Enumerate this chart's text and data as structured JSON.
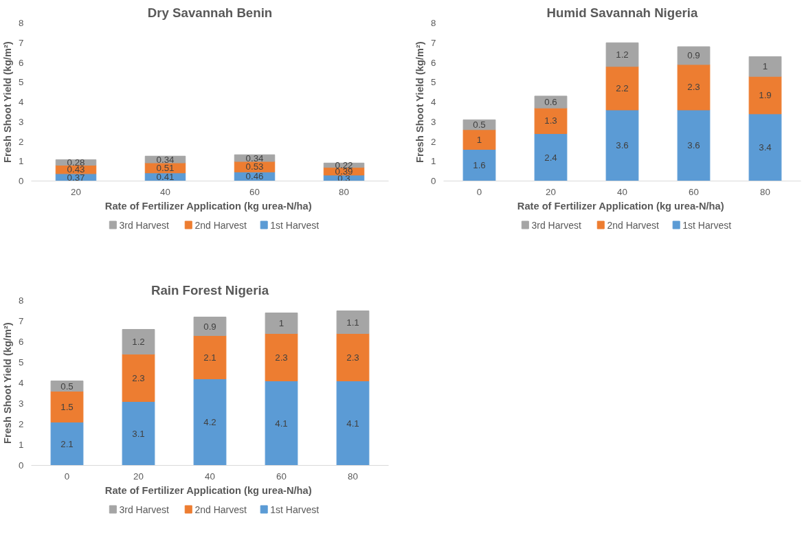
{
  "chart_data": [
    {
      "type": "bar",
      "title": "Dry Savannah Benin",
      "xlabel": "Rate of Fertilizer Application  (kg urea-N/ha)",
      "ylabel": "Fresh Shoot Yield (kg/m²)",
      "categories": [
        "20",
        "40",
        "60",
        "80"
      ],
      "stacked": true,
      "data_labels": true,
      "legend": "bottom",
      "ylim": [
        0,
        8
      ],
      "yticks": [
        0,
        1,
        2,
        3,
        4,
        5,
        6,
        7,
        8
      ],
      "series": [
        {
          "name": "1st Harvest",
          "color": "#5b9bd5",
          "values": [
            0.37,
            0.41,
            0.46,
            0.3
          ]
        },
        {
          "name": "2nd Harvest",
          "color": "#ed7d31",
          "values": [
            0.43,
            0.51,
            0.53,
            0.39
          ]
        },
        {
          "name": "3rd Harvest",
          "color": "#a5a5a5",
          "values": [
            0.28,
            0.34,
            0.34,
            0.22
          ]
        }
      ]
    },
    {
      "type": "bar",
      "title": "Humid Savannah Nigeria",
      "xlabel": "Rate of Fertilizer Application  (kg urea-N/ha)",
      "ylabel": "Fresh Shoot Yield (kg/m²)",
      "categories": [
        "0",
        "20",
        "40",
        "60",
        "80"
      ],
      "stacked": true,
      "data_labels": true,
      "legend": "bottom",
      "ylim": [
        0,
        8
      ],
      "yticks": [
        0,
        1,
        2,
        3,
        4,
        5,
        6,
        7,
        8
      ],
      "series": [
        {
          "name": "1st Harvest",
          "color": "#5b9bd5",
          "values": [
            1.6,
            2.4,
            3.6,
            3.6,
            3.4
          ]
        },
        {
          "name": "2nd Harvest",
          "color": "#ed7d31",
          "values": [
            1,
            1.3,
            2.2,
            2.3,
            1.9
          ]
        },
        {
          "name": "3rd Harvest",
          "color": "#a5a5a5",
          "values": [
            0.5,
            0.6,
            1.2,
            0.9,
            1
          ]
        }
      ]
    },
    {
      "type": "bar",
      "title": "Rain Forest Nigeria",
      "xlabel": "Rate of Fertilizer Application  (kg urea-N/ha)",
      "ylabel": "Fresh Shoot Yield (kg/m²)",
      "categories": [
        "0",
        "20",
        "40",
        "60",
        "80"
      ],
      "stacked": true,
      "data_labels": true,
      "legend": "bottom",
      "ylim": [
        0,
        8
      ],
      "yticks": [
        0,
        1,
        2,
        3,
        4,
        5,
        6,
        7,
        8
      ],
      "series": [
        {
          "name": "1st Harvest",
          "color": "#5b9bd5",
          "values": [
            2.1,
            3.1,
            4.2,
            4.1,
            4.1
          ]
        },
        {
          "name": "2nd Harvest",
          "color": "#ed7d31",
          "values": [
            1.5,
            2.3,
            2.1,
            2.3,
            2.3
          ]
        },
        {
          "name": "3rd Harvest",
          "color": "#a5a5a5",
          "values": [
            0.5,
            1.2,
            0.9,
            1,
            1.1
          ]
        }
      ]
    }
  ]
}
